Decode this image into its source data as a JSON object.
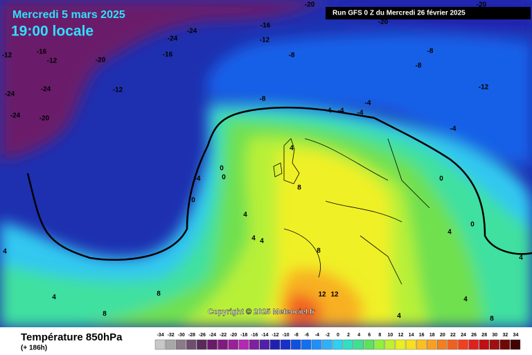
{
  "header": {
    "date": "Mercredi 5 mars 2025",
    "time": "19:00 locale",
    "run": "Run GFS 0 Z du Mercredi 26 février 2025"
  },
  "copyright": "Copyright © 2025 Meteociel.fr",
  "footer": {
    "title": "Température 850hPa",
    "lead": "(+ 186h)"
  },
  "map_labels": [
    "-20",
    "-20",
    "-20",
    "-16",
    "-24",
    "-24",
    "-12",
    "-16",
    "-20",
    "-12",
    "-16",
    "-12",
    "-8",
    "-8",
    "-8",
    "-24",
    "-24",
    "-12",
    "-12",
    "-8",
    "-4",
    "-4",
    "-4",
    "-4",
    "-24",
    "-20",
    "-4",
    "4",
    "0",
    "0",
    "-4",
    "0",
    "8",
    "0",
    "4",
    "4",
    "4",
    "4",
    "0",
    "4",
    "8",
    "4",
    "12",
    "12",
    "8",
    "4",
    "8",
    "4",
    "4",
    "8"
  ],
  "legend": [
    {
      "label": "-34",
      "color": "#c8c8c8"
    },
    {
      "label": "-32",
      "color": "#a8a8a8"
    },
    {
      "label": "-30",
      "color": "#8a7a8a"
    },
    {
      "label": "-28",
      "color": "#6e4e6e"
    },
    {
      "label": "-26",
      "color": "#5a2a5a"
    },
    {
      "label": "-24",
      "color": "#6a1a6a"
    },
    {
      "label": "-22",
      "color": "#801a80"
    },
    {
      "label": "-20",
      "color": "#9a209a"
    },
    {
      "label": "-18",
      "color": "#b428b4"
    },
    {
      "label": "-16",
      "color": "#8020a0"
    },
    {
      "label": "-14",
      "color": "#5020a8"
    },
    {
      "label": "-12",
      "color": "#2020b0"
    },
    {
      "label": "-10",
      "color": "#1830c8"
    },
    {
      "label": "-8",
      "color": "#1050e0"
    },
    {
      "label": "-6",
      "color": "#1070f0"
    },
    {
      "label": "-4",
      "color": "#2090f8"
    },
    {
      "label": "-2",
      "color": "#30b0f8"
    },
    {
      "label": "0",
      "color": "#30d0f0"
    },
    {
      "label": "2",
      "color": "#30e0c0"
    },
    {
      "label": "4",
      "color": "#40e090"
    },
    {
      "label": "6",
      "color": "#60e060"
    },
    {
      "label": "8",
      "color": "#90f040"
    },
    {
      "label": "10",
      "color": "#c0f030"
    },
    {
      "label": "12",
      "color": "#e8f020"
    },
    {
      "label": "14",
      "color": "#f8e020"
    },
    {
      "label": "16",
      "color": "#f8c020"
    },
    {
      "label": "18",
      "color": "#f8a020"
    },
    {
      "label": "20",
      "color": "#f08020"
    },
    {
      "label": "22",
      "color": "#f06020"
    },
    {
      "label": "24",
      "color": "#f04020"
    },
    {
      "label": "26",
      "color": "#e02020"
    },
    {
      "label": "28",
      "color": "#c01010"
    },
    {
      "label": "30",
      "color": "#a01010"
    },
    {
      "label": "32",
      "color": "#700808"
    },
    {
      "label": "34",
      "color": "#400404"
    }
  ]
}
